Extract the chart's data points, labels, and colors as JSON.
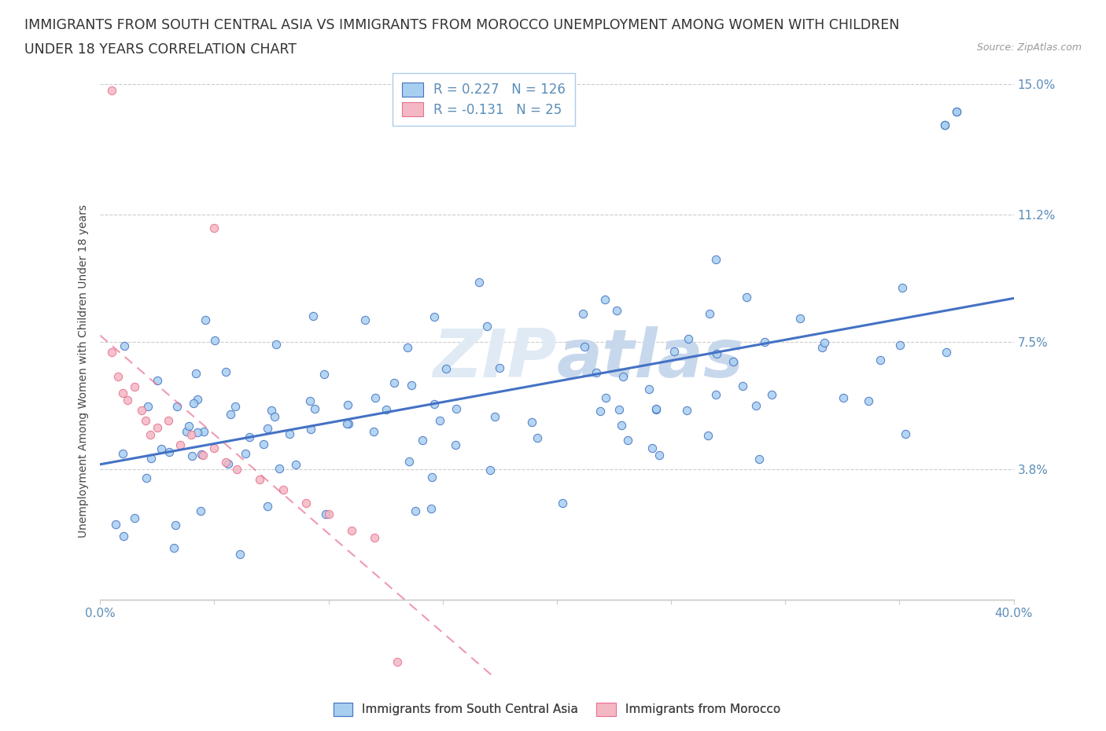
{
  "title_line1": "IMMIGRANTS FROM SOUTH CENTRAL ASIA VS IMMIGRANTS FROM MOROCCO UNEMPLOYMENT AMONG WOMEN WITH CHILDREN",
  "title_line2": "UNDER 18 YEARS CORRELATION CHART",
  "source": "Source: ZipAtlas.com",
  "ylabel": "Unemployment Among Women with Children Under 18 years",
  "legend1_label": "Immigrants from South Central Asia",
  "legend2_label": "Immigrants from Morocco",
  "R1": 0.227,
  "N1": 126,
  "R2": -0.131,
  "N2": 25,
  "xlim": [
    0.0,
    0.4
  ],
  "ylim": [
    -0.022,
    0.155
  ],
  "yticks": [
    0.038,
    0.075,
    0.112,
    0.15
  ],
  "ytick_labels": [
    "3.8%",
    "7.5%",
    "11.2%",
    "15.0%"
  ],
  "xticks": [
    0.0,
    0.05,
    0.1,
    0.15,
    0.2,
    0.25,
    0.3,
    0.35,
    0.4
  ],
  "xtick_labels": [
    "0.0%",
    "",
    "",
    "",
    "",
    "",
    "",
    "",
    "40.0%"
  ],
  "color_blue": "#A8CFF0",
  "color_pink": "#F4B8C4",
  "color_blue_line": "#4472C4",
  "color_pink_line": "#E87090",
  "background_color": "#FFFFFF",
  "watermark": "ZIPatlas",
  "tick_label_color": "#5B8DB8",
  "grid_color": "#CCCCCC",
  "spine_color": "#CCCCCC"
}
